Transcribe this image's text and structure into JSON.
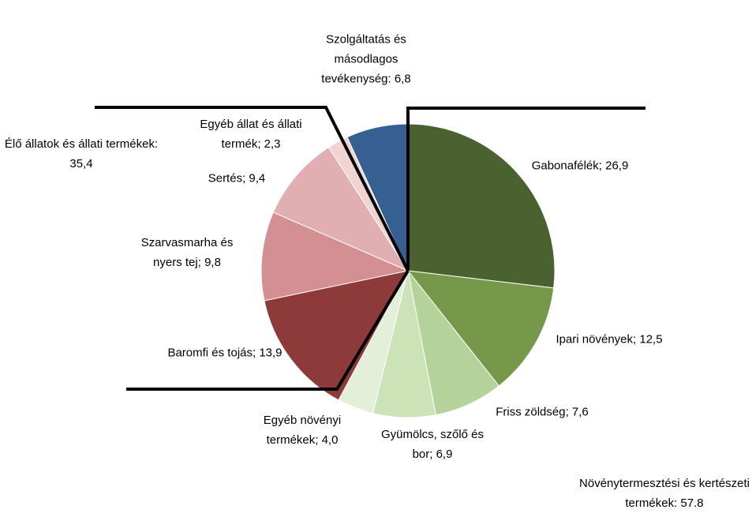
{
  "chart_data": {
    "type": "pie",
    "values": [
      26.9,
      12.5,
      7.6,
      6.9,
      4.0,
      13.9,
      9.8,
      9.4,
      2.3,
      6.8
    ],
    "value_labels": [
      "Gabonafélék; 26,9",
      "Ipari növények; 12,5",
      "Friss zöldség; 7,6",
      "Gyümölcs, szőlő és bor; 6,9",
      "Egyéb növényi termékek; 4,0",
      "Baromfi és tojás; 13,9",
      "Szarvasmarha és nyers tej; 9,8",
      "Sertés; 9,4",
      "Egyéb állat és állati termék; 2,3",
      "Szolgáltatás és másodlagos tevékenység: 6,8"
    ],
    "colors": [
      "#4a6130",
      "#76984a",
      "#b4d39a",
      "#cce3b8",
      "#e4efd9",
      "#8e3a3a",
      "#d48f93",
      "#e1afb2",
      "#f1d3d3",
      "#366092"
    ],
    "annotations": [
      "Élő állatok és állati termékek: 35,4",
      "Növénytermesztési és kertészeti termékek: 57.8"
    ]
  }
}
